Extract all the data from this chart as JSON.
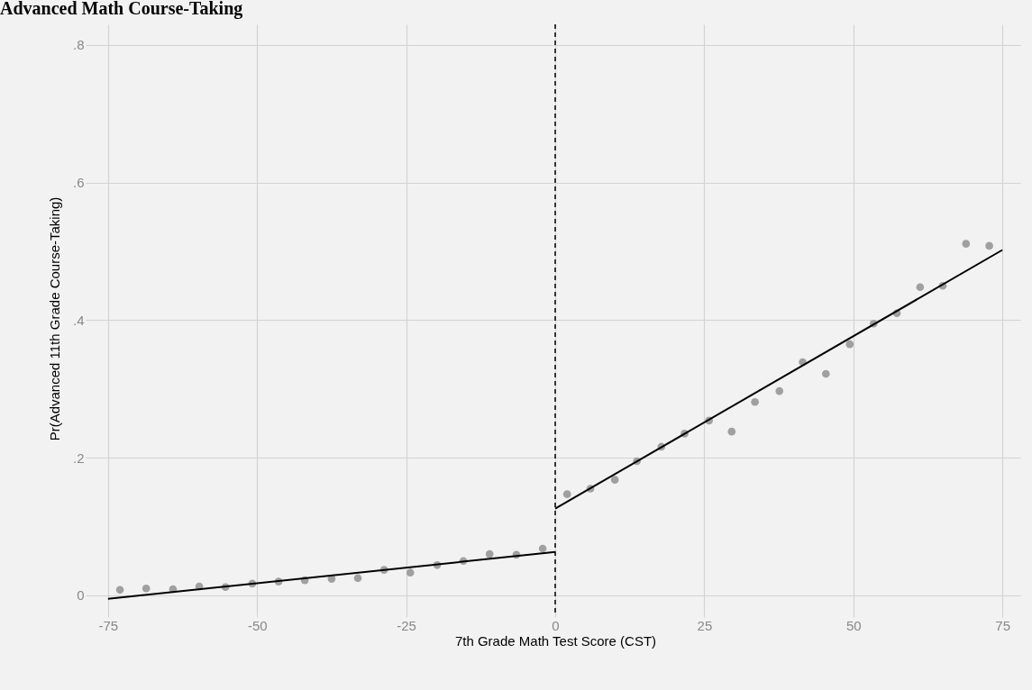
{
  "chart_data": {
    "type": "scatter",
    "title": "Advanced Math Course-Taking",
    "xlabel": "7th Grade Math Test Score (CST)",
    "ylabel": "Pr(Advanced 11th Grade Course-Taking)",
    "xlim": [
      -78,
      78
    ],
    "xticks": [
      -75,
      -50,
      -25,
      0,
      25,
      50,
      75
    ],
    "ylim": [
      -0.025,
      0.83
    ],
    "yticks": [
      {
        "value": 0,
        "label": "0"
      },
      {
        "value": 0.2,
        "label": ".2"
      },
      {
        "value": 0.4,
        "label": ".4"
      },
      {
        "value": 0.6,
        "label": ".6"
      },
      {
        "value": 0.8,
        "label": ".8"
      }
    ],
    "grid": true,
    "series": [
      {
        "color": "#a0a0a0",
        "marker": "circle",
        "x": [
          -73,
          -68.6,
          -64.1,
          -59.7,
          -55.3,
          -50.8,
          -46.4,
          -42,
          -37.5,
          -33.1,
          -28.7,
          -24.3,
          -19.8,
          -15.4,
          -11,
          -6.5,
          -2.1,
          2,
          5.9,
          10,
          13.7,
          17.8,
          21.7,
          25.8,
          29.6,
          33.5,
          37.6,
          41.5,
          45.4,
          49.4,
          53.4,
          57.3,
          61.2,
          65,
          68.9,
          72.8
        ],
        "values": [
          0.008,
          0.01,
          0.009,
          0.013,
          0.012,
          0.017,
          0.02,
          0.022,
          0.024,
          0.025,
          0.037,
          0.033,
          0.044,
          0.05,
          0.06,
          0.059,
          0.068,
          0.147,
          0.155,
          0.168,
          0.195,
          0.216,
          0.235,
          0.254,
          0.238,
          0.281,
          0.297,
          0.339,
          0.322,
          0.365,
          0.395,
          0.41,
          0.448,
          0.45,
          0.511,
          0.508
        ]
      },
      {
        "type": "line",
        "color": "#000000",
        "x": [
          -75,
          0
        ],
        "values": [
          -0.005,
          0.063
        ]
      },
      {
        "type": "line",
        "color": "#000000",
        "x": [
          0,
          75
        ],
        "values": [
          0.126,
          0.502
        ]
      }
    ],
    "ref_lines": [
      {
        "axis": "x",
        "value": 0,
        "color": "#000000",
        "line_style": "dashed"
      }
    ]
  }
}
